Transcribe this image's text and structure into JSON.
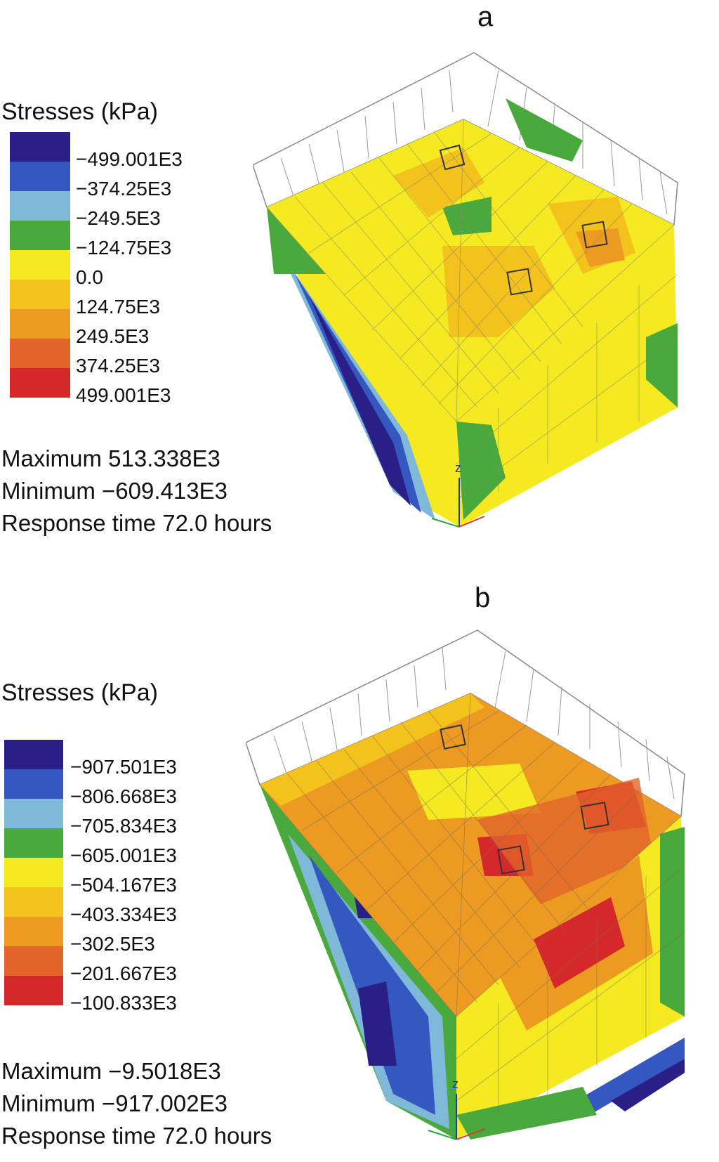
{
  "panels": [
    {
      "label": "a",
      "legend_title": "Stresses (kPa)",
      "legend_ticks": [
        "−499.001E3",
        "−374.25E3",
        "−249.5E3",
        "−124.75E3",
        "0.0",
        "124.75E3",
        "249.5E3",
        "374.25E3",
        "499.001E3"
      ],
      "legend_colors": [
        "#2a1f86",
        "#3558c0",
        "#7fb8d8",
        "#49a93c",
        "#f5ea22",
        "#f3c21c",
        "#ec9a21",
        "#e2642a",
        "#d4282a"
      ],
      "maximum": "Maximum 513.338E3",
      "minimum": "Minimum −609.413E3",
      "response_time": "Response time 72.0 hours"
    },
    {
      "label": "b",
      "legend_title": "Stresses (kPa)",
      "legend_ticks": [
        "−907.501E3",
        "−806.668E3",
        "−705.834E3",
        "−605.001E3",
        "−504.167E3",
        "−403.334E3",
        "−302.5E3",
        "−201.667E3",
        "−100.833E3"
      ],
      "legend_colors": [
        "#2a1f86",
        "#3558c0",
        "#7fb8d8",
        "#49a93c",
        "#f5ea22",
        "#f3c21c",
        "#ec9a21",
        "#e2642a",
        "#d4282a"
      ],
      "maximum": "Maximum −9.5018E3",
      "minimum": "Minimum −917.002E3",
      "response_time": "Response time 72.0 hours"
    }
  ],
  "axis_labels": {
    "z": "z"
  }
}
